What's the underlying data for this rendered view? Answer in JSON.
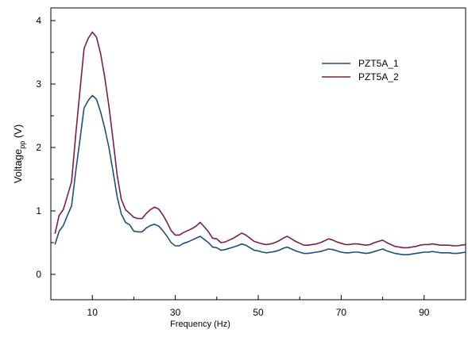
{
  "chart_data": {
    "type": "line",
    "title": "",
    "xlabel": "Frequency (Hz)",
    "ylabel": "Voltage",
    "ylabel_subscript": "pp",
    "ylabel_unit": " (V)",
    "xlim": [
      0,
      100
    ],
    "ylim": [
      -0.4,
      4.2
    ],
    "xticks_major": [
      10,
      30,
      50,
      70,
      90
    ],
    "xticks_minor": [
      0,
      20,
      40,
      60,
      80,
      100
    ],
    "yticks": [
      0,
      1,
      2,
      3,
      4
    ],
    "grid": false,
    "legend_position": "top-right",
    "series": [
      {
        "name": "PZT5A_1",
        "color": "#1f4e79",
        "x": [
          1,
          2,
          3,
          4,
          5,
          6,
          7,
          8,
          9,
          10,
          11,
          12,
          13,
          14,
          15,
          16,
          17,
          18,
          19,
          20,
          21,
          22,
          23,
          24,
          25,
          26,
          27,
          28,
          29,
          30,
          31,
          32,
          33,
          34,
          35,
          36,
          37,
          38,
          39,
          40,
          41,
          42,
          43,
          44,
          45,
          46,
          47,
          48,
          49,
          50,
          51,
          52,
          53,
          54,
          55,
          56,
          57,
          58,
          59,
          60,
          61,
          62,
          63,
          64,
          65,
          66,
          67,
          68,
          69,
          70,
          71,
          72,
          73,
          74,
          75,
          76,
          77,
          78,
          79,
          80,
          81,
          82,
          83,
          84,
          85,
          86,
          87,
          88,
          89,
          90,
          91,
          92,
          93,
          94,
          95,
          96,
          97,
          98,
          99,
          100
        ],
        "y": [
          0.47,
          0.68,
          0.77,
          0.93,
          1.08,
          1.62,
          2.11,
          2.62,
          2.74,
          2.82,
          2.76,
          2.56,
          2.3,
          2.0,
          1.62,
          1.22,
          0.95,
          0.82,
          0.78,
          0.68,
          0.67,
          0.67,
          0.73,
          0.77,
          0.79,
          0.76,
          0.69,
          0.6,
          0.5,
          0.45,
          0.45,
          0.49,
          0.51,
          0.54,
          0.57,
          0.6,
          0.55,
          0.5,
          0.43,
          0.42,
          0.38,
          0.39,
          0.41,
          0.43,
          0.45,
          0.48,
          0.46,
          0.42,
          0.38,
          0.37,
          0.35,
          0.34,
          0.35,
          0.36,
          0.38,
          0.41,
          0.43,
          0.4,
          0.37,
          0.35,
          0.33,
          0.33,
          0.34,
          0.35,
          0.36,
          0.38,
          0.4,
          0.39,
          0.37,
          0.35,
          0.34,
          0.34,
          0.35,
          0.35,
          0.34,
          0.33,
          0.34,
          0.36,
          0.38,
          0.4,
          0.37,
          0.35,
          0.33,
          0.32,
          0.31,
          0.31,
          0.32,
          0.33,
          0.34,
          0.35,
          0.35,
          0.36,
          0.35,
          0.34,
          0.34,
          0.34,
          0.33,
          0.33,
          0.34,
          0.35
        ]
      },
      {
        "name": "PZT5A_2",
        "color": "#7b1e4a",
        "x": [
          1,
          2,
          3,
          4,
          5,
          6,
          7,
          8,
          9,
          10,
          11,
          12,
          13,
          14,
          15,
          16,
          17,
          18,
          19,
          20,
          21,
          22,
          23,
          24,
          25,
          26,
          27,
          28,
          29,
          30,
          31,
          32,
          33,
          34,
          35,
          36,
          37,
          38,
          39,
          40,
          41,
          42,
          43,
          44,
          45,
          46,
          47,
          48,
          49,
          50,
          51,
          52,
          53,
          54,
          55,
          56,
          57,
          58,
          59,
          60,
          61,
          62,
          63,
          64,
          65,
          66,
          67,
          68,
          69,
          70,
          71,
          72,
          73,
          74,
          75,
          76,
          77,
          78,
          79,
          80,
          81,
          82,
          83,
          84,
          85,
          86,
          87,
          88,
          89,
          90,
          91,
          92,
          93,
          94,
          95,
          96,
          97,
          98,
          99,
          100
        ],
        "y": [
          0.64,
          0.93,
          1.02,
          1.24,
          1.46,
          2.2,
          2.88,
          3.56,
          3.72,
          3.82,
          3.74,
          3.48,
          3.1,
          2.65,
          2.12,
          1.56,
          1.18,
          1.02,
          0.96,
          0.9,
          0.88,
          0.88,
          0.96,
          1.02,
          1.06,
          1.03,
          0.94,
          0.82,
          0.69,
          0.62,
          0.62,
          0.66,
          0.69,
          0.72,
          0.76,
          0.82,
          0.75,
          0.67,
          0.57,
          0.56,
          0.5,
          0.51,
          0.54,
          0.57,
          0.61,
          0.65,
          0.62,
          0.57,
          0.52,
          0.5,
          0.48,
          0.47,
          0.48,
          0.5,
          0.53,
          0.57,
          0.6,
          0.56,
          0.52,
          0.49,
          0.46,
          0.46,
          0.47,
          0.48,
          0.5,
          0.53,
          0.56,
          0.54,
          0.51,
          0.49,
          0.47,
          0.47,
          0.48,
          0.48,
          0.47,
          0.46,
          0.47,
          0.5,
          0.52,
          0.54,
          0.5,
          0.47,
          0.44,
          0.43,
          0.42,
          0.42,
          0.43,
          0.44,
          0.46,
          0.47,
          0.47,
          0.48,
          0.47,
          0.46,
          0.46,
          0.46,
          0.45,
          0.45,
          0.46,
          0.47
        ]
      }
    ]
  }
}
